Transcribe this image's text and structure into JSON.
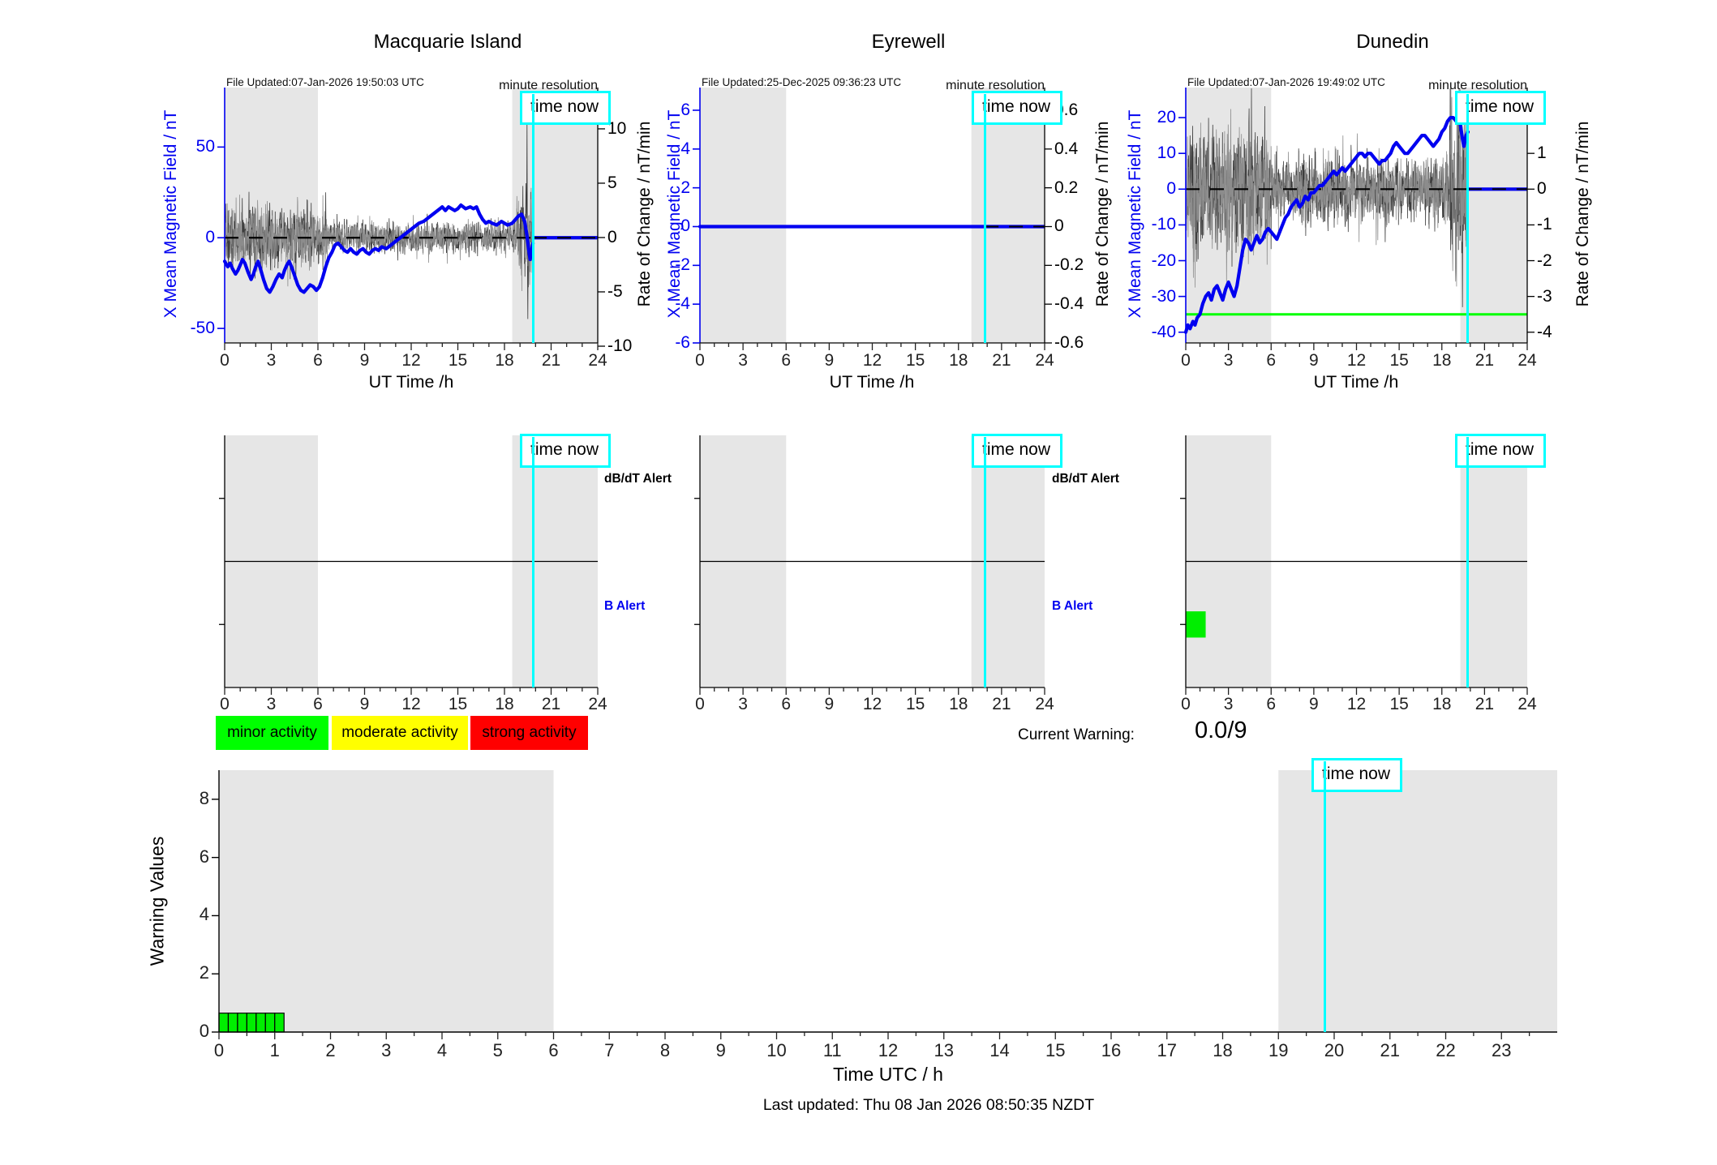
{
  "colors": {
    "blue": "#0000f0",
    "shade": "#e6e6e6",
    "noise_dark": "#3c3c3c",
    "noise_light": "#8c8c8c",
    "cyan": "#00ffff",
    "green_bar": "#00ee00",
    "green_line": "#00ff00",
    "legend_green": "#00ff00",
    "legend_yellow": "#ffff00",
    "legend_red": "#ff0000",
    "black": "#000000"
  },
  "chart_data": [
    {
      "id": "macquarie",
      "type": "line",
      "title": "Macquarie Island",
      "file_updated": "File Updated:07-Jan-2026 19:50:03 UTC",
      "minute_res": "minute resolution",
      "time_now_label": "time now",
      "xlabel": "UT Time /h",
      "left_label": "X Mean Magnetic Field / nT",
      "right_label": "Rate of Change / nT/min",
      "x_range": [
        0,
        24
      ],
      "x_ticks": [
        0,
        3,
        6,
        9,
        12,
        15,
        18,
        21,
        24
      ],
      "left_range": [
        -58,
        82.8
      ],
      "left_ticks": [
        50,
        0,
        -50
      ],
      "right_range": [
        -9.7,
        13.8
      ],
      "right_ticks": [
        10,
        5,
        0,
        -5,
        -10
      ],
      "night": [
        [
          0,
          6
        ],
        [
          18.5,
          24
        ]
      ],
      "time_now": 19.83,
      "flat_value": 0,
      "green_line": null,
      "series": [
        [
          0,
          -13
        ],
        [
          0.2,
          -16
        ],
        [
          0.35,
          -14
        ],
        [
          0.5,
          -17
        ],
        [
          0.7,
          -20
        ],
        [
          0.85,
          -18
        ],
        [
          1,
          -15
        ],
        [
          1.15,
          -12
        ],
        [
          1.3,
          -14
        ],
        [
          1.5,
          -19
        ],
        [
          1.7,
          -23
        ],
        [
          1.85,
          -20
        ],
        [
          2,
          -16
        ],
        [
          2.15,
          -13
        ],
        [
          2.3,
          -17
        ],
        [
          2.5,
          -23
        ],
        [
          2.7,
          -28
        ],
        [
          2.9,
          -30
        ],
        [
          3.1,
          -27
        ],
        [
          3.3,
          -23
        ],
        [
          3.5,
          -20
        ],
        [
          3.7,
          -22
        ],
        [
          3.85,
          -18
        ],
        [
          4,
          -15
        ],
        [
          4.15,
          -13
        ],
        [
          4.3,
          -16
        ],
        [
          4.5,
          -21
        ],
        [
          4.7,
          -26
        ],
        [
          4.9,
          -29
        ],
        [
          5.1,
          -30
        ],
        [
          5.3,
          -28
        ],
        [
          5.5,
          -26
        ],
        [
          5.7,
          -27
        ],
        [
          5.9,
          -29
        ],
        [
          6.1,
          -27
        ],
        [
          6.3,
          -22
        ],
        [
          6.5,
          -16
        ],
        [
          6.7,
          -11
        ],
        [
          6.9,
          -8
        ],
        [
          7.1,
          -4
        ],
        [
          7.3,
          -3
        ],
        [
          7.5,
          -5
        ],
        [
          7.7,
          -7
        ],
        [
          7.9,
          -8
        ],
        [
          8.1,
          -6
        ],
        [
          8.3,
          -8
        ],
        [
          8.5,
          -9
        ],
        [
          8.7,
          -7
        ],
        [
          8.9,
          -6
        ],
        [
          9.1,
          -8
        ],
        [
          9.3,
          -9
        ],
        [
          9.5,
          -7
        ],
        [
          9.7,
          -6
        ],
        [
          9.9,
          -7
        ],
        [
          10.1,
          -5
        ],
        [
          10.4,
          -6
        ],
        [
          10.7,
          -4
        ],
        [
          11,
          -2
        ],
        [
          11.3,
          0
        ],
        [
          11.6,
          2
        ],
        [
          11.9,
          4
        ],
        [
          12.2,
          6
        ],
        [
          12.5,
          8
        ],
        [
          12.8,
          9
        ],
        [
          13.1,
          11
        ],
        [
          13.4,
          13
        ],
        [
          13.7,
          15
        ],
        [
          14,
          17
        ],
        [
          14.2,
          15
        ],
        [
          14.4,
          17
        ],
        [
          14.6,
          16
        ],
        [
          14.8,
          15
        ],
        [
          15,
          16
        ],
        [
          15.2,
          18
        ],
        [
          15.5,
          16
        ],
        [
          15.8,
          17
        ],
        [
          16,
          16
        ],
        [
          16.2,
          17
        ],
        [
          16.4,
          13
        ],
        [
          16.6,
          10
        ],
        [
          16.8,
          8
        ],
        [
          17,
          9
        ],
        [
          17.2,
          8
        ],
        [
          17.5,
          7
        ],
        [
          17.8,
          9
        ],
        [
          18,
          8
        ],
        [
          18.2,
          7
        ],
        [
          18.5,
          8
        ],
        [
          18.7,
          10
        ],
        [
          18.9,
          12
        ],
        [
          19.1,
          13
        ],
        [
          19.3,
          9
        ],
        [
          19.45,
          1
        ],
        [
          19.55,
          -6
        ],
        [
          19.65,
          -12
        ],
        [
          19.75,
          -7
        ],
        [
          19.83,
          -3
        ]
      ],
      "noise": {
        "seeds": [
          7,
          8
        ],
        "segments": [
          [
            0,
            6.6,
            1.35
          ],
          [
            6.6,
            18.8,
            0.7
          ],
          [
            18.8,
            19.83,
            2.0
          ]
        ],
        "spikes": [
          [
            19.45,
            11
          ],
          [
            19.5,
            -7.5
          ],
          [
            19.38,
            5
          ],
          [
            2.9,
            3.2
          ],
          [
            2.95,
            -3.0
          ],
          [
            5.1,
            2.6
          ]
        ]
      }
    },
    {
      "id": "eyrewell",
      "type": "line",
      "title": "Eyrewell",
      "file_updated": "File Updated:25-Dec-2025 09:36:23 UTC",
      "minute_res": "minute resolution",
      "time_now_label": "time now",
      "xlabel": "UT Time /h",
      "left_label": "X Mean Magnetic Field / nT",
      "right_label": "Rate of Change / nT/min",
      "x_range": [
        0,
        24
      ],
      "x_ticks": [
        0,
        3,
        6,
        9,
        12,
        15,
        18,
        21,
        24
      ],
      "left_range": [
        -6,
        7.17
      ],
      "left_ticks": [
        6,
        4,
        2,
        0,
        -2,
        -4,
        -6
      ],
      "right_range": [
        -0.6,
        0.717
      ],
      "right_ticks": [
        0.6,
        0.4,
        0.2,
        0,
        -0.2,
        -0.4,
        -0.6
      ],
      "night": [
        [
          0,
          6
        ],
        [
          18.9,
          24
        ]
      ],
      "time_now": 19.83,
      "flat_value": 0,
      "green_line": null,
      "series": [
        [
          0,
          0
        ],
        [
          19.83,
          0
        ]
      ],
      "noise": null
    },
    {
      "id": "dunedin",
      "type": "line",
      "title": "Dunedin",
      "file_updated": "File Updated:07-Jan-2026 19:49:02 UTC",
      "minute_res": "minute resolution",
      "time_now_label": "time now",
      "xlabel": "UT Time /h",
      "left_label": "X Mean Magnetic Field / nT",
      "right_label": "Rate of Change / nT/min",
      "x_range": [
        0,
        24
      ],
      "x_ticks": [
        0,
        3,
        6,
        9,
        12,
        15,
        18,
        21,
        24
      ],
      "left_range": [
        -43,
        28.4
      ],
      "left_ticks": [
        20,
        10,
        0,
        -10,
        -20,
        -30,
        -40
      ],
      "right_range": [
        -4.3,
        2.84
      ],
      "right_ticks": [
        2,
        1,
        0,
        -1,
        -2,
        -3,
        -4
      ],
      "night": [
        [
          0,
          6
        ],
        [
          19.3,
          24
        ]
      ],
      "time_now": 19.83,
      "flat_value": 0,
      "green_line": -35,
      "series": [
        [
          0,
          -40
        ],
        [
          0.15,
          -38
        ],
        [
          0.3,
          -39
        ],
        [
          0.5,
          -37
        ],
        [
          0.65,
          -38
        ],
        [
          0.8,
          -36
        ],
        [
          1,
          -35
        ],
        [
          1.2,
          -32
        ],
        [
          1.4,
          -30
        ],
        [
          1.6,
          -29
        ],
        [
          1.8,
          -31
        ],
        [
          2,
          -28
        ],
        [
          2.2,
          -27
        ],
        [
          2.4,
          -29
        ],
        [
          2.6,
          -31
        ],
        [
          2.8,
          -28
        ],
        [
          3,
          -26
        ],
        [
          3.2,
          -28
        ],
        [
          3.4,
          -30
        ],
        [
          3.6,
          -27
        ],
        [
          3.8,
          -22
        ],
        [
          4,
          -17
        ],
        [
          4.2,
          -14
        ],
        [
          4.4,
          -15
        ],
        [
          4.6,
          -17
        ],
        [
          4.8,
          -15
        ],
        [
          5,
          -13
        ],
        [
          5.2,
          -15
        ],
        [
          5.4,
          -14
        ],
        [
          5.6,
          -12
        ],
        [
          5.8,
          -11
        ],
        [
          6,
          -12
        ],
        [
          6.2,
          -13
        ],
        [
          6.4,
          -14
        ],
        [
          6.6,
          -12
        ],
        [
          6.8,
          -10
        ],
        [
          7,
          -8
        ],
        [
          7.2,
          -7
        ],
        [
          7.4,
          -5
        ],
        [
          7.6,
          -4
        ],
        [
          7.8,
          -3
        ],
        [
          8,
          -5
        ],
        [
          8.2,
          -4
        ],
        [
          8.4,
          -2
        ],
        [
          8.6,
          -3
        ],
        [
          8.8,
          -1
        ],
        [
          9,
          -1
        ],
        [
          9.2,
          0
        ],
        [
          9.4,
          1
        ],
        [
          9.6,
          1
        ],
        [
          9.8,
          2
        ],
        [
          10,
          3
        ],
        [
          10.2,
          4
        ],
        [
          10.4,
          5
        ],
        [
          10.6,
          4
        ],
        [
          10.8,
          5
        ],
        [
          11,
          6
        ],
        [
          11.2,
          5
        ],
        [
          11.4,
          6
        ],
        [
          11.6,
          7
        ],
        [
          11.8,
          8
        ],
        [
          12,
          9
        ],
        [
          12.2,
          10
        ],
        [
          12.4,
          10
        ],
        [
          12.6,
          9
        ],
        [
          12.8,
          10
        ],
        [
          13,
          10
        ],
        [
          13.2,
          9
        ],
        [
          13.4,
          8
        ],
        [
          13.6,
          7
        ],
        [
          13.8,
          8
        ],
        [
          14,
          8
        ],
        [
          14.2,
          9
        ],
        [
          14.4,
          10
        ],
        [
          14.6,
          12
        ],
        [
          14.8,
          13
        ],
        [
          15,
          12
        ],
        [
          15.2,
          11
        ],
        [
          15.4,
          10
        ],
        [
          15.6,
          10
        ],
        [
          15.8,
          11
        ],
        [
          16,
          12
        ],
        [
          16.2,
          13
        ],
        [
          16.4,
          14
        ],
        [
          16.6,
          15
        ],
        [
          16.8,
          15
        ],
        [
          17,
          14
        ],
        [
          17.2,
          13
        ],
        [
          17.4,
          12
        ],
        [
          17.6,
          13
        ],
        [
          17.8,
          14
        ],
        [
          18,
          16
        ],
        [
          18.2,
          17
        ],
        [
          18.4,
          19
        ],
        [
          18.6,
          20
        ],
        [
          18.8,
          20
        ],
        [
          19,
          19
        ],
        [
          19.1,
          20
        ],
        [
          19.3,
          18
        ],
        [
          19.45,
          14
        ],
        [
          19.55,
          12
        ],
        [
          19.7,
          15
        ],
        [
          19.83,
          16
        ]
      ],
      "noise": {
        "seeds": [
          13,
          14
        ],
        "segments": [
          [
            0,
            6,
            0.85
          ],
          [
            6,
            18.5,
            0.45
          ],
          [
            18.5,
            19.83,
            1.1
          ]
        ],
        "spikes": [
          [
            1.9,
            1.8
          ],
          [
            2.1,
            -1.5
          ],
          [
            4.05,
            -1.9
          ],
          [
            0.3,
            1.5
          ],
          [
            19.45,
            -3.3
          ],
          [
            19.5,
            1.4
          ]
        ]
      }
    }
  ],
  "alert_row": {
    "time_now": 19.83,
    "time_now_label": "time now",
    "x_ticks": [
      0,
      3,
      6,
      9,
      12,
      15,
      18,
      21,
      24
    ],
    "labels": {
      "dbdt": "dB/dT Alert",
      "b": "B Alert"
    },
    "plots": [
      {
        "station": "macquarie",
        "night": [
          [
            0,
            6
          ],
          [
            18.5,
            24
          ]
        ],
        "bars": []
      },
      {
        "station": "eyrewell",
        "night": [
          [
            0,
            6
          ],
          [
            18.9,
            24
          ]
        ],
        "bars": []
      },
      {
        "station": "dunedin",
        "night": [
          [
            0,
            6
          ],
          [
            19.3,
            24
          ]
        ],
        "bars": [
          {
            "x0": 0,
            "x1": 1.4,
            "row": "b",
            "color": "#00ee00"
          }
        ]
      }
    ]
  },
  "legend": {
    "items": [
      {
        "label": "minor activity",
        "color": "#00ff00"
      },
      {
        "label": "moderate activity",
        "color": "#ffff00"
      },
      {
        "label": "strong activity",
        "color": "#ff0000"
      }
    ]
  },
  "current_warning": {
    "label": "Current Warning:",
    "value": "0.0/9"
  },
  "bottom": {
    "type": "bar",
    "ylabel": "Warning Values",
    "xlabel": "Time UTC / h",
    "y_range": [
      0,
      9
    ],
    "y_ticks": [
      0,
      2,
      4,
      6,
      8
    ],
    "x_range": [
      0,
      24
    ],
    "x_ticks": [
      0,
      1,
      2,
      3,
      4,
      5,
      6,
      7,
      8,
      9,
      10,
      11,
      12,
      13,
      14,
      15,
      16,
      17,
      18,
      19,
      20,
      21,
      22,
      23
    ],
    "night": [
      [
        0,
        6
      ],
      [
        19,
        24
      ]
    ],
    "time_now": 19.83,
    "time_now_label": "time now",
    "bars": {
      "start": 0,
      "count": 7,
      "width": 0.1667,
      "height": 0.65,
      "color": "#00ee00"
    }
  },
  "footer": {
    "last_updated": "Last updated: Thu 08 Jan 2026 08:50:35 NZDT"
  }
}
